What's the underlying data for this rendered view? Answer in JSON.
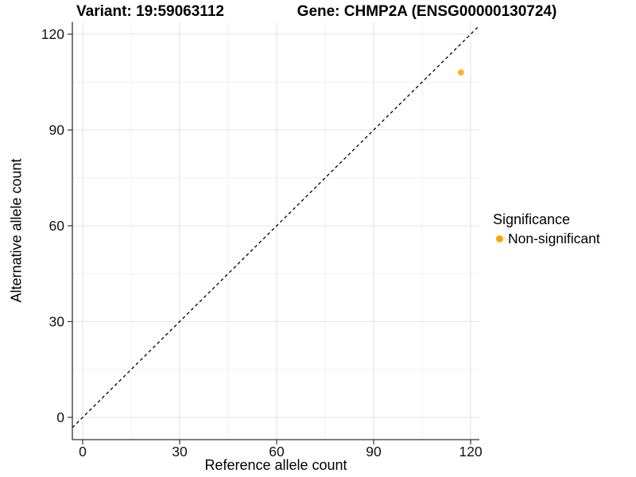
{
  "chart_data": {
    "type": "scatter",
    "title_left": "Variant: 19:59063112",
    "title_right": "Gene: CHMP2A (ENSG00000130724)",
    "xlabel": "Reference allele count",
    "ylabel": "Alternative allele count",
    "xlim": [
      -6,
      124
    ],
    "ylim": [
      -6,
      124
    ],
    "xticks": [
      0,
      30,
      60,
      90,
      120
    ],
    "yticks": [
      0,
      30,
      60,
      90,
      120
    ],
    "xticks_minor": [
      15,
      45,
      75,
      105
    ],
    "yticks_minor": [
      15,
      45,
      75,
      105
    ],
    "grid": true,
    "reference_line": {
      "type": "identity",
      "slope": 1,
      "intercept": 0,
      "style": "dashed",
      "color": "#000000"
    },
    "series": [
      {
        "name": "Non-significant",
        "color": "#FFA500",
        "points": [
          {
            "x": 117,
            "y": 108
          }
        ]
      }
    ],
    "legend": {
      "title": "Significance",
      "position": "right",
      "entries": [
        {
          "label": "Non-significant",
          "color": "#FFA500"
        }
      ]
    }
  }
}
